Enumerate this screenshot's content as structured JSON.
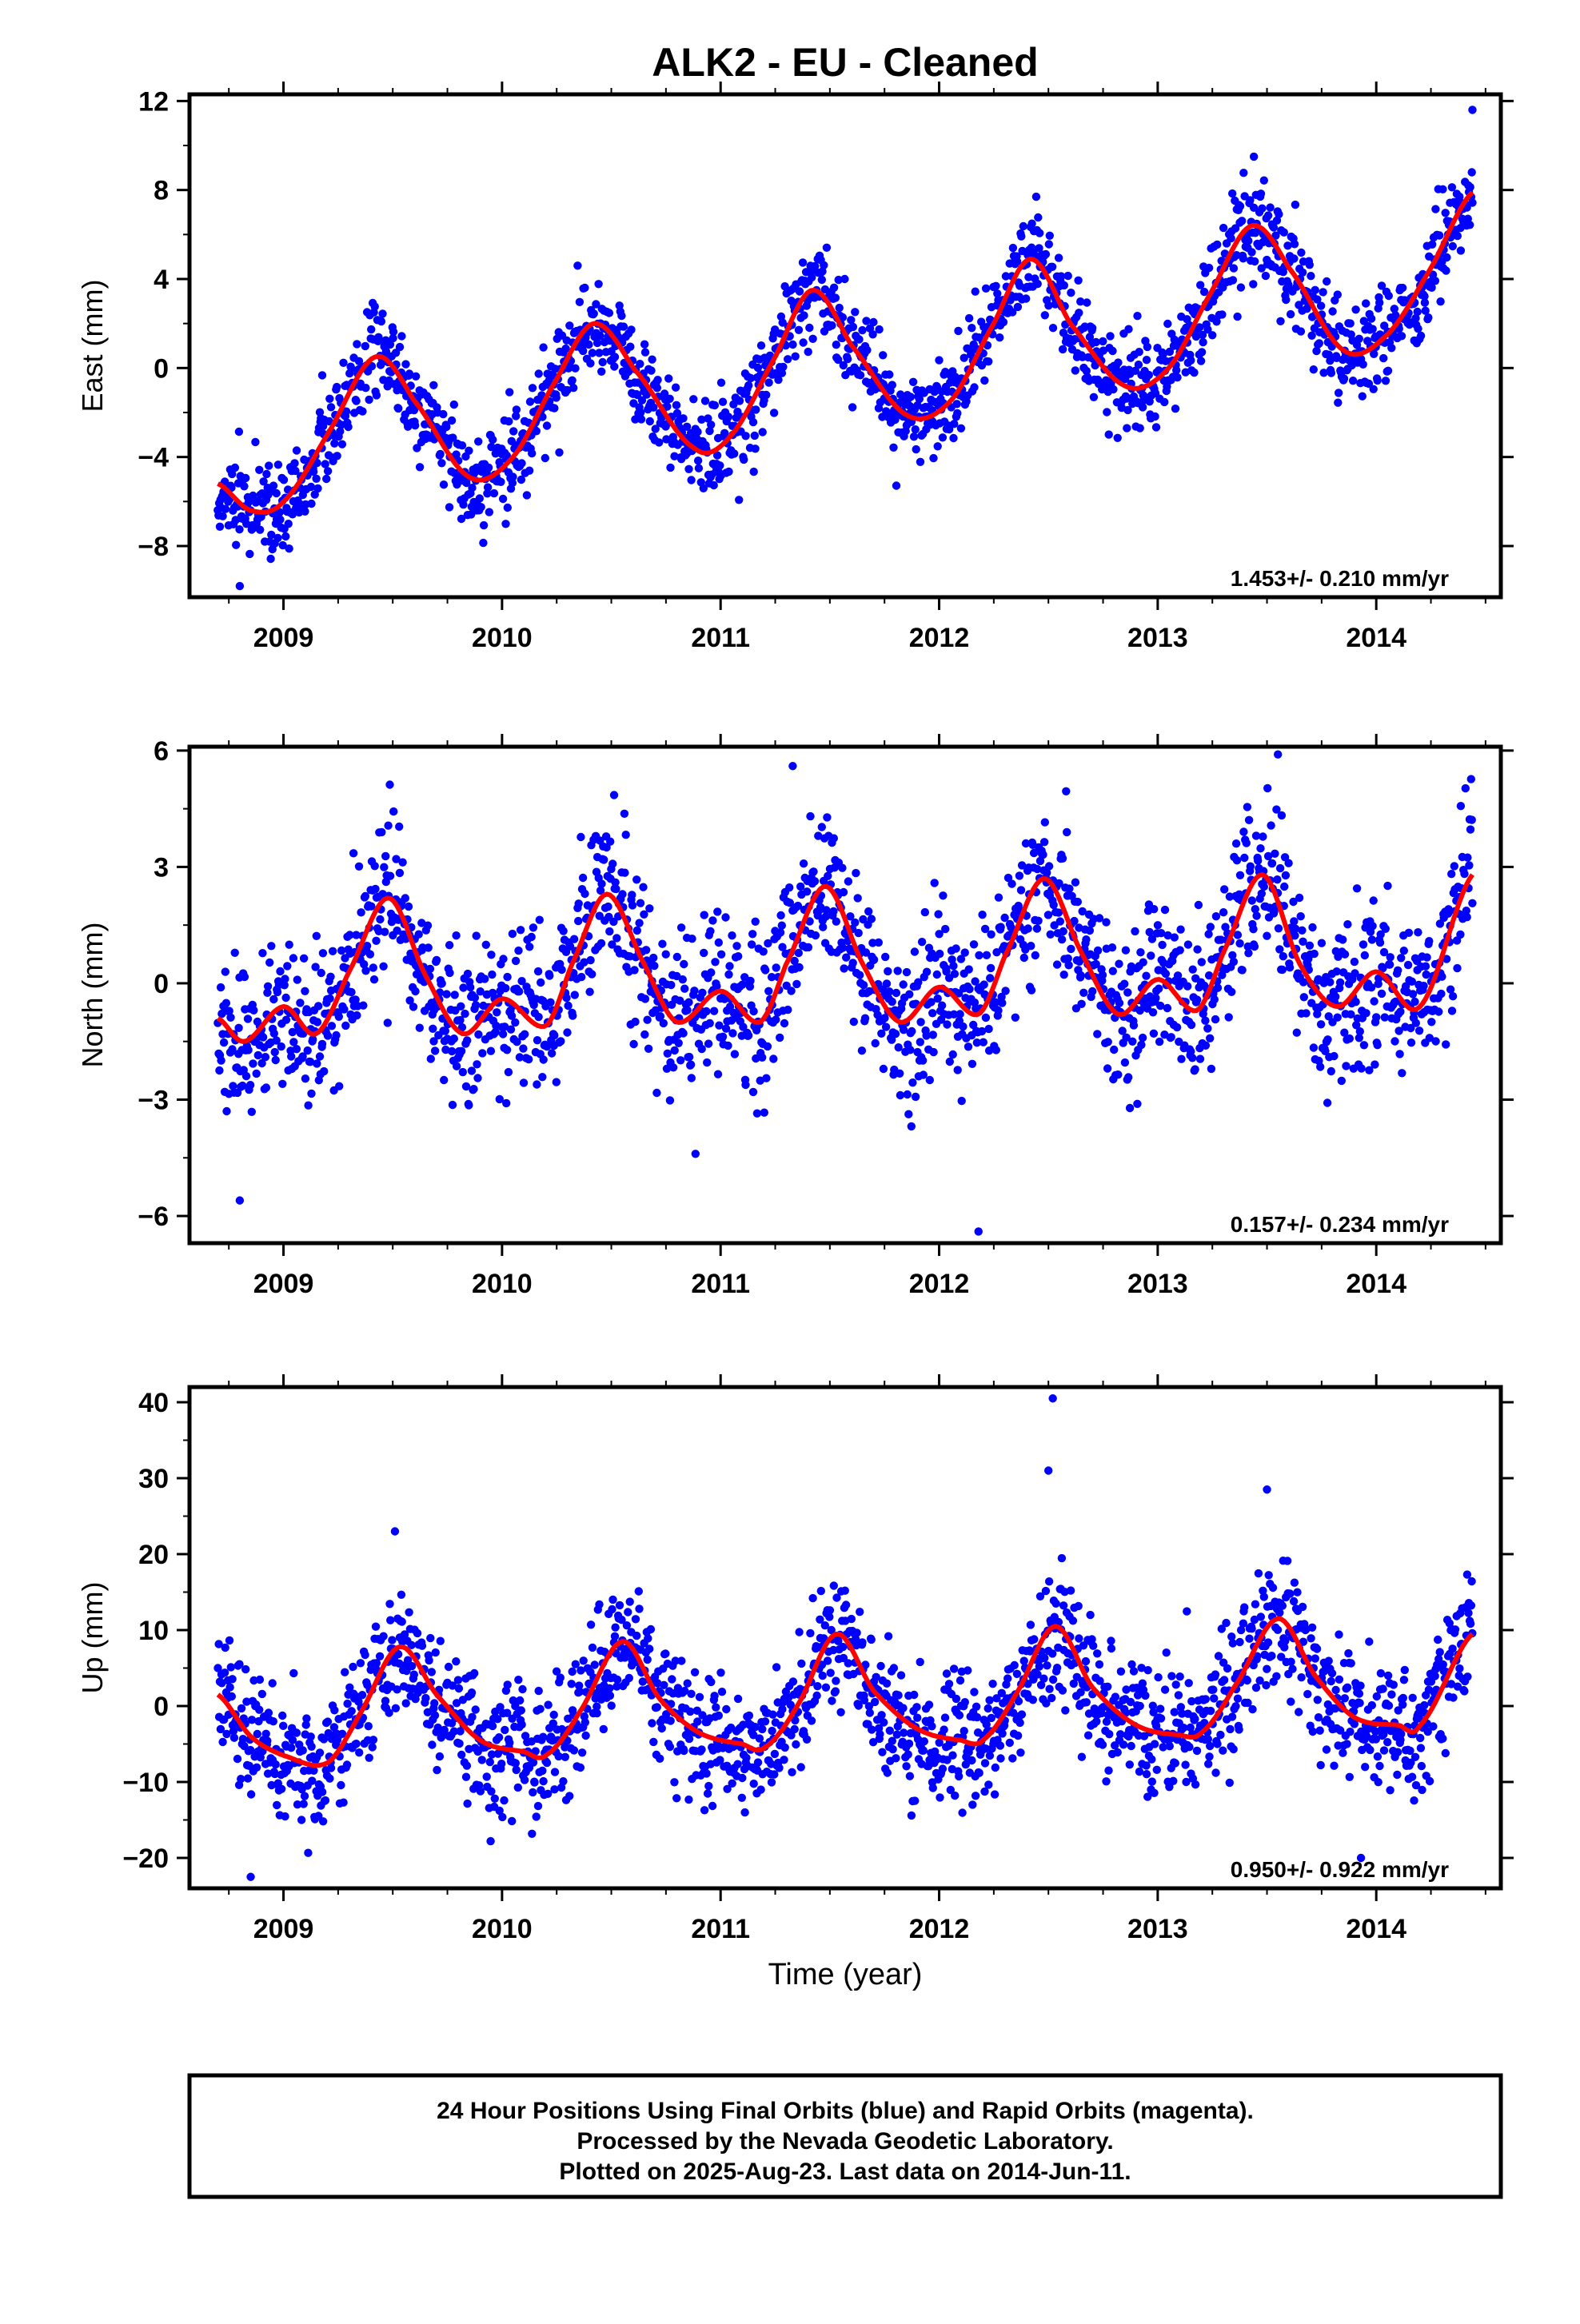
{
  "chart_data": [
    {
      "type": "scatter",
      "title": "ALK2  - EU - Cleaned",
      "xlabel": "",
      "ylabel": "East (mm)",
      "xlim": [
        2008.57,
        2014.57
      ],
      "ylim": [
        -10.3,
        12.3
      ],
      "xticks": [
        2009,
        2010,
        2011,
        2012,
        2013,
        2014
      ],
      "xtick_labels": [
        "2009",
        "2010",
        "2011",
        "2012",
        "2013",
        "2014"
      ],
      "yticks": [
        -8,
        -4,
        0,
        4,
        8,
        12
      ],
      "ytick_labels": [
        "−8",
        "−4",
        "0",
        "4",
        "8",
        "12"
      ],
      "rate_label": "1.453+/- 0.210 mm/yr",
      "data_start": 2008.7,
      "data_end": 2014.44,
      "point_color": "#0000ff",
      "fit_color": "#ff0000",
      "fit": {
        "name": "model",
        "x": [
          2008.7,
          2008.85,
          2009.0,
          2009.2,
          2009.42,
          2009.6,
          2009.85,
          2010.05,
          2010.25,
          2010.42,
          2010.6,
          2010.88,
          2011.05,
          2011.25,
          2011.42,
          2011.6,
          2011.85,
          2012.05,
          2012.25,
          2012.42,
          2012.6,
          2012.85,
          2013.05,
          2013.25,
          2013.43,
          2013.6,
          2013.85,
          2014.05,
          2014.25,
          2014.44
        ],
        "y": [
          -5.2,
          -6.4,
          -6.0,
          -3.0,
          0.5,
          -1.5,
          -4.9,
          -4.0,
          -0.5,
          2.0,
          0.0,
          -3.6,
          -3.0,
          0.5,
          3.5,
          1.0,
          -2.1,
          -1.5,
          2.0,
          4.9,
          2.0,
          -0.8,
          0.0,
          3.5,
          6.4,
          4.5,
          0.8,
          1.5,
          4.5,
          7.9
        ]
      },
      "scatter": {
        "n_points": 1850,
        "noise_sd_mm": 1.1,
        "outliers": [
          [
            2014.44,
            11.6
          ],
          [
            2013.44,
            9.5
          ],
          [
            2008.8,
            -9.8
          ]
        ]
      }
    },
    {
      "type": "scatter",
      "title": "",
      "xlabel": "",
      "ylabel": "North (mm)",
      "xlim": [
        2008.57,
        2014.57
      ],
      "ylim": [
        -6.7,
        6.1
      ],
      "xticks": [
        2009,
        2010,
        2011,
        2012,
        2013,
        2014
      ],
      "xtick_labels": [
        "2009",
        "2010",
        "2011",
        "2012",
        "2013",
        "2014"
      ],
      "yticks": [
        -6,
        -3,
        0,
        3,
        6
      ],
      "ytick_labels": [
        "−6",
        "−3",
        "0",
        "3",
        "6"
      ],
      "rate_label": "0.157+/- 0.234 mm/yr",
      "data_start": 2008.7,
      "data_end": 2014.44,
      "point_color": "#0000ff",
      "fit_color": "#ff0000",
      "fit": {
        "name": "model",
        "x": [
          2008.7,
          2008.82,
          2009.0,
          2009.15,
          2009.3,
          2009.48,
          2009.65,
          2009.82,
          2010.0,
          2010.2,
          2010.32,
          2010.48,
          2010.65,
          2010.8,
          2011.0,
          2011.18,
          2011.3,
          2011.48,
          2011.65,
          2011.82,
          2012.0,
          2012.18,
          2012.3,
          2012.48,
          2012.65,
          2012.82,
          2013.0,
          2013.18,
          2013.3,
          2013.48,
          2013.65,
          2013.82,
          2014.0,
          2014.2,
          2014.44
        ],
        "y": [
          -0.9,
          -1.5,
          -0.6,
          -1.3,
          0.3,
          2.2,
          0.2,
          -1.3,
          -0.4,
          -1.1,
          0.5,
          2.3,
          0.5,
          -1.0,
          -0.2,
          -1.0,
          0.5,
          2.5,
          0.5,
          -1.0,
          -0.1,
          -0.8,
          0.7,
          2.7,
          0.8,
          -0.8,
          0.1,
          -0.7,
          0.8,
          2.8,
          0.5,
          -0.6,
          0.3,
          -0.6,
          2.8
        ]
      },
      "scatter": {
        "n_points": 1850,
        "noise_sd_mm": 1.0,
        "outliers": [
          [
            2012.18,
            -6.4
          ],
          [
            2013.55,
            5.9
          ],
          [
            2011.33,
            5.6
          ],
          [
            2008.8,
            -5.6
          ]
        ]
      }
    },
    {
      "type": "scatter",
      "title": "",
      "xlabel": "Time (year)",
      "ylabel": "Up (mm)",
      "xlim": [
        2008.57,
        2014.57
      ],
      "ylim": [
        -24,
        42
      ],
      "xticks": [
        2009,
        2010,
        2011,
        2012,
        2013,
        2014
      ],
      "xtick_labels": [
        "2009",
        "2010",
        "2011",
        "2012",
        "2013",
        "2014"
      ],
      "yticks": [
        -20,
        -10,
        0,
        10,
        20,
        30,
        40
      ],
      "ytick_labels": [
        "−20",
        "−10",
        "0",
        "10",
        "20",
        "30",
        "40"
      ],
      "rate_label": "0.950+/- 0.922 mm/yr",
      "data_start": 2008.7,
      "data_end": 2014.44,
      "point_color": "#0000ff",
      "fit_color": "#ff0000",
      "fit": {
        "name": "model",
        "x": [
          2008.7,
          2008.85,
          2009.0,
          2009.2,
          2009.35,
          2009.53,
          2009.7,
          2009.9,
          2010.1,
          2010.2,
          2010.35,
          2010.55,
          2010.72,
          2010.9,
          2011.1,
          2011.2,
          2011.35,
          2011.53,
          2011.7,
          2011.9,
          2012.1,
          2012.2,
          2012.35,
          2012.53,
          2012.7,
          2012.9,
          2013.1,
          2013.2,
          2013.35,
          2013.55,
          2013.72,
          2013.9,
          2014.1,
          2014.2,
          2014.44
        ],
        "y": [
          1.5,
          -4.0,
          -6.5,
          -7.5,
          -1.0,
          7.8,
          1.5,
          -4.5,
          -6.0,
          -6.5,
          -1.0,
          8.5,
          1.0,
          -3.5,
          -5.0,
          -5.5,
          0.0,
          9.5,
          2.0,
          -3.0,
          -4.5,
          -4.5,
          1.5,
          10.5,
          2.5,
          -2.5,
          -3.8,
          -3.5,
          2.5,
          11.5,
          4.0,
          -1.5,
          -2.5,
          -2.5,
          9.5
        ]
      },
      "scatter": {
        "n_points": 1850,
        "noise_sd_mm": 4.2,
        "outliers": [
          [
            2012.52,
            40.5
          ],
          [
            2012.5,
            31.0
          ],
          [
            2013.5,
            28.5
          ],
          [
            2009.51,
            23.0
          ],
          [
            2008.85,
            -22.5
          ],
          [
            2013.93,
            -20.0
          ]
        ]
      }
    }
  ],
  "footer": {
    "line1": "24 Hour Positions Using Final Orbits (blue) and Rapid Orbits (magenta).",
    "line2": "Processed by the Nevada Geodetic Laboratory.",
    "line3": "Plotted on 2025-Aug-23. Last data on 2014-Jun-11."
  }
}
